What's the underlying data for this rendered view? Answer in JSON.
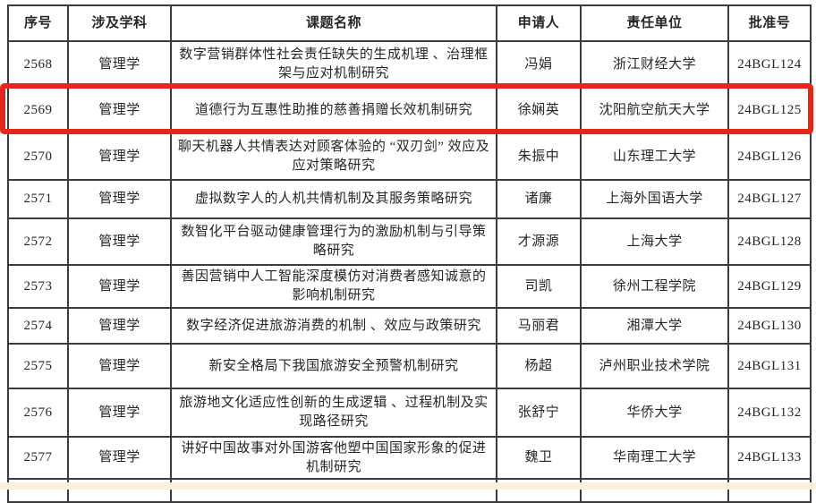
{
  "table": {
    "columns": [
      {
        "key": "seq",
        "label": "序号"
      },
      {
        "key": "discipline",
        "label": "涉及学科"
      },
      {
        "key": "title",
        "label": "课题名称"
      },
      {
        "key": "applicant",
        "label": "申请人"
      },
      {
        "key": "institution",
        "label": "责任单位"
      },
      {
        "key": "approval",
        "label": "批准号"
      }
    ],
    "rows": [
      {
        "seq": "2568",
        "discipline": "管理学",
        "title": "数字营销群体性社会责任缺失的生成机理 、治理框架与应对机制研究",
        "applicant": "冯娟",
        "institution": "浙江财经大学",
        "approval": "24BGL124",
        "highlighted": false
      },
      {
        "seq": "2569",
        "discipline": "管理学",
        "title": "道德行为互惠性助推的慈善捐赠长效机制研究",
        "applicant": "徐娴英",
        "institution": "沈阳航空航天大学",
        "approval": "24BGL125",
        "highlighted": true
      },
      {
        "seq": "2570",
        "discipline": "管理学",
        "title": "聊天机器人共情表达对顾客体验的 “双刃剑” 效应及应对策略研究",
        "applicant": "朱振中",
        "institution": "山东理工大学",
        "approval": "24BGL126",
        "highlighted": false
      },
      {
        "seq": "2571",
        "discipline": "管理学",
        "title": "虚拟数字人的人机共情机制及其服务策略研究",
        "applicant": "诸廉",
        "institution": "上海外国语大学",
        "approval": "24BGL127",
        "highlighted": false
      },
      {
        "seq": "2572",
        "discipline": "管理学",
        "title": "数智化平台驱动健康管理行为的激励机制与引导策略研究",
        "applicant": "才源源",
        "institution": "上海大学",
        "approval": "24BGL128",
        "highlighted": false
      },
      {
        "seq": "2573",
        "discipline": "管理学",
        "title": "善因营销中人工智能深度模仿对消费者感知诚意的影响机制研究",
        "applicant": "司凯",
        "institution": "徐州工程学院",
        "approval": "24BGL129",
        "highlighted": false
      },
      {
        "seq": "2574",
        "discipline": "管理学",
        "title": "数字经济促进旅游消费的机制 、效应与政策研究",
        "applicant": "马丽君",
        "institution": "湘潭大学",
        "approval": "24BGL130",
        "highlighted": false
      },
      {
        "seq": "2575",
        "discipline": "管理学",
        "title": "新安全格局下我国旅游安全预警机制研究",
        "applicant": "杨超",
        "institution": "泸州职业技术学院",
        "approval": "24BGL131",
        "highlighted": false
      },
      {
        "seq": "2576",
        "discipline": "管理学",
        "title": "旅游地文化适应性创新的生成逻辑 、过程机制及实现路径研究",
        "applicant": "张舒宁",
        "institution": "华侨大学",
        "approval": "24BGL132",
        "highlighted": false
      },
      {
        "seq": "2577",
        "discipline": "管理学",
        "title": "讲好中国故事对外国游客他塑中国国家形象的促进机制研究",
        "applicant": "魏卫",
        "institution": "华南理工大学",
        "approval": "24BGL133",
        "highlighted": false
      }
    ],
    "partial_row_visible": true
  },
  "highlight": {
    "highlighted_seq": "2569",
    "color": "#e7251b"
  }
}
